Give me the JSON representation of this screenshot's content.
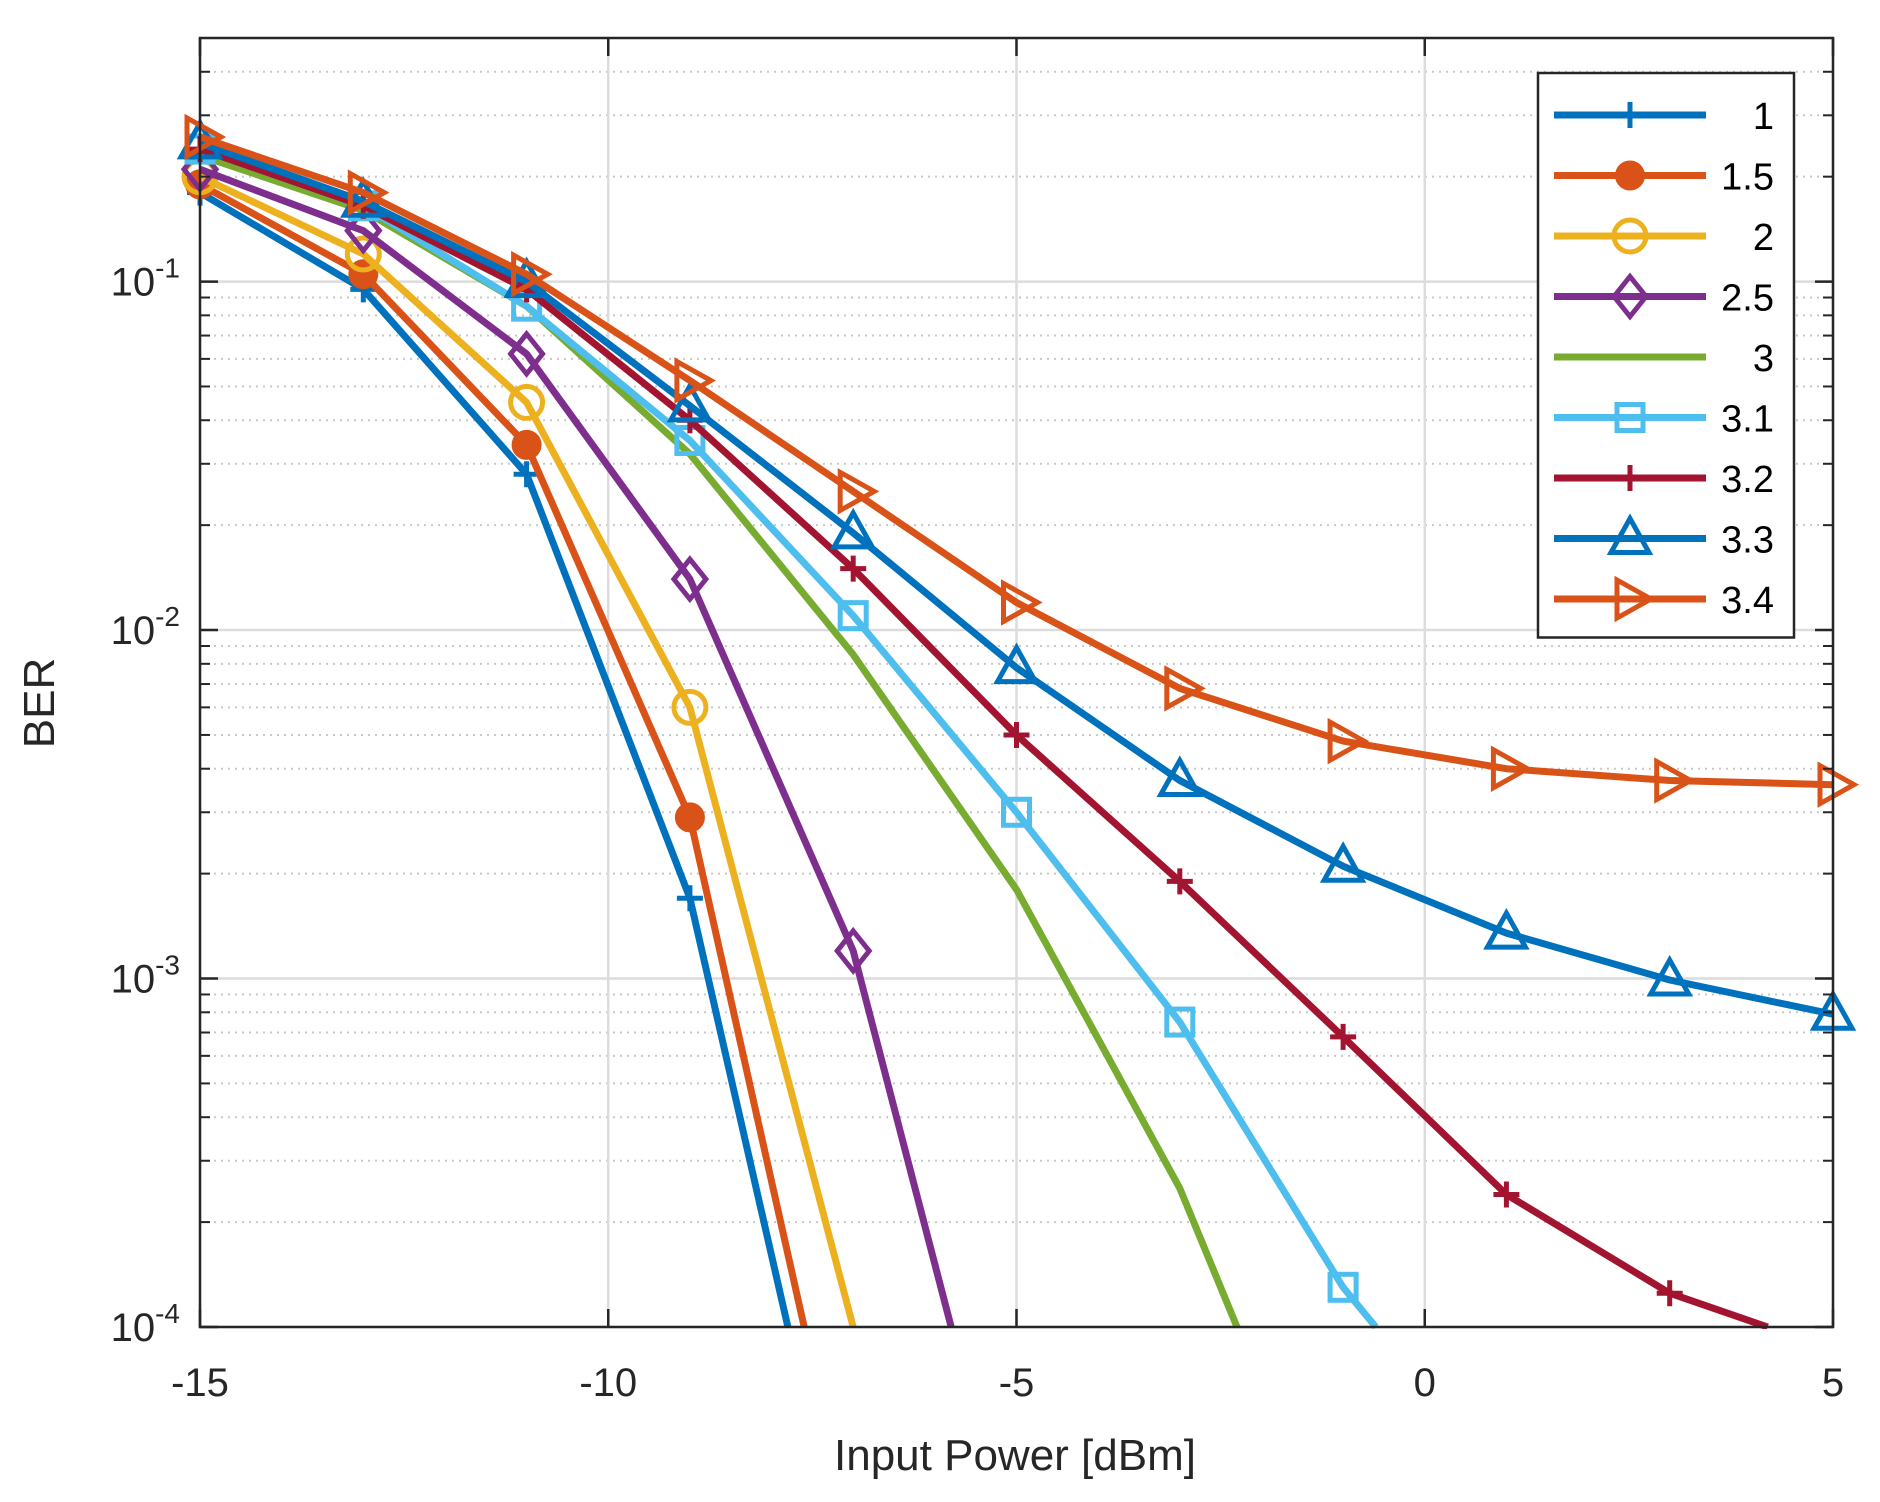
{
  "chart_data": {
    "type": "line",
    "title": "",
    "xlabel": "Input Power [dBm]",
    "ylabel": "BER",
    "xlim": [
      -15,
      5
    ],
    "ylim": [
      0.0001,
      0.5
    ],
    "yscale": "log",
    "grid": true,
    "legend_position": "top-right",
    "x_ticks": [
      {
        "value": -15,
        "label": "-15"
      },
      {
        "value": -10,
        "label": "-10"
      },
      {
        "value": -5,
        "label": "-5"
      },
      {
        "value": 0,
        "label": "0"
      },
      {
        "value": 5,
        "label": "5"
      }
    ],
    "y_ticks": [
      {
        "value": 0.1,
        "base": "10",
        "exp": "-1"
      },
      {
        "value": 0.01,
        "base": "10",
        "exp": "-2"
      },
      {
        "value": 0.001,
        "base": "10",
        "exp": "-3"
      },
      {
        "value": 0.0001,
        "base": "10",
        "exp": "-4"
      }
    ],
    "series": [
      {
        "name": "1",
        "color": "#0072BD",
        "marker": "plus",
        "x": [
          -15,
          -13,
          -11,
          -9,
          -7.8
        ],
        "y": [
          0.18,
          0.095,
          0.028,
          0.0017,
          0.0001
        ]
      },
      {
        "name": "1.5",
        "color": "#D95319",
        "marker": "circle-filled",
        "x": [
          -15,
          -13,
          -11,
          -9,
          -7.6
        ],
        "y": [
          0.19,
          0.105,
          0.034,
          0.0029,
          0.0001
        ]
      },
      {
        "name": "2",
        "color": "#EDB120",
        "marker": "circle-open",
        "x": [
          -15,
          -13,
          -11,
          -9,
          -7
        ],
        "y": [
          0.2,
          0.12,
          0.045,
          0.006,
          0.0001
        ]
      },
      {
        "name": "2.5",
        "color": "#7E2F8E",
        "marker": "diamond",
        "x": [
          -15,
          -13,
          -11,
          -9,
          -7,
          -5.8
        ],
        "y": [
          0.21,
          0.14,
          0.062,
          0.014,
          0.0012,
          0.0001
        ]
      },
      {
        "name": "3",
        "color": "#77AC30",
        "marker": "none",
        "x": [
          -15,
          -13,
          -11,
          -9,
          -7,
          -5,
          -3,
          -2.3
        ],
        "y": [
          0.23,
          0.16,
          0.085,
          0.032,
          0.0085,
          0.0018,
          0.00025,
          0.0001
        ]
      },
      {
        "name": "3.1",
        "color": "#4DBEEE",
        "marker": "square",
        "x": [
          -15,
          -13,
          -11,
          -9,
          -7,
          -5,
          -3,
          -1,
          -0.6
        ],
        "y": [
          0.24,
          0.165,
          0.085,
          0.035,
          0.011,
          0.003,
          0.00075,
          0.00013,
          0.0001
        ]
      },
      {
        "name": "3.2",
        "color": "#A2142F",
        "marker": "plus",
        "x": [
          -15,
          -13,
          -11,
          -9,
          -7,
          -5,
          -3,
          -1,
          1,
          3,
          4.2
        ],
        "y": [
          0.24,
          0.165,
          0.095,
          0.04,
          0.015,
          0.005,
          0.0019,
          0.00068,
          0.00024,
          0.000125,
          0.0001
        ]
      },
      {
        "name": "3.3",
        "color": "#0072BD",
        "marker": "triangle-up",
        "x": [
          -15,
          -13,
          -11,
          -9,
          -7,
          -5,
          -3,
          -1,
          1,
          3,
          5
        ],
        "y": [
          0.25,
          0.17,
          0.1,
          0.044,
          0.019,
          0.0078,
          0.0037,
          0.0021,
          0.00135,
          0.00099,
          0.00079
        ]
      },
      {
        "name": "3.4",
        "color": "#D95319",
        "marker": "triangle-right",
        "x": [
          -15,
          -13,
          -11,
          -9,
          -7,
          -5,
          -3,
          -1,
          1,
          3,
          5
        ],
        "y": [
          0.26,
          0.18,
          0.105,
          0.052,
          0.025,
          0.012,
          0.0068,
          0.0048,
          0.004,
          0.0037,
          0.0036
        ]
      }
    ]
  }
}
